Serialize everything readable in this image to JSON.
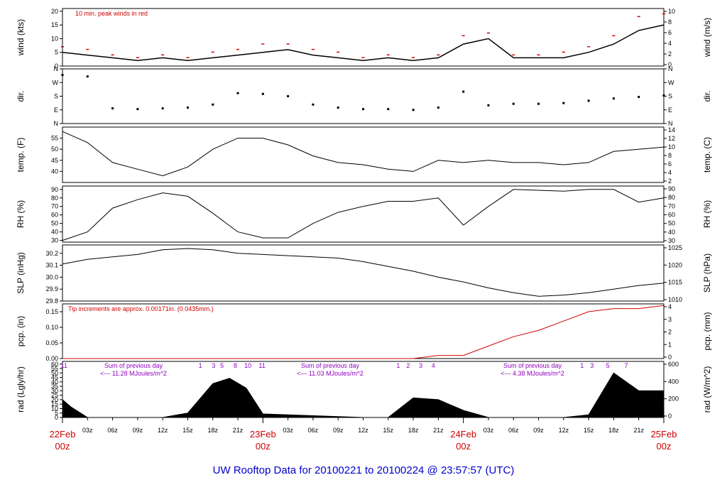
{
  "title": "UW Rooftop Data for 20100221  to  20100224 @ 23:57:57  (UTC)",
  "colors": {
    "red": "#d00000",
    "purple": "#9000c0",
    "blue": "#0000d0"
  },
  "chart_data": [
    {
      "id": "wind",
      "type": "line",
      "ylabel": "wind (kts)",
      "ylabel_right": "wind (m/s)",
      "ylim": [
        0,
        21
      ],
      "yticks": [
        0,
        5,
        10,
        15,
        20
      ],
      "yticks_right": [
        0,
        2,
        4,
        6,
        8,
        10
      ],
      "annotation": "10 min. peak winds in red",
      "series": [
        {
          "color": "#000000",
          "x": [
            0,
            3,
            6,
            9,
            12,
            15,
            18,
            21,
            24,
            27,
            30,
            33,
            36,
            39,
            42,
            45,
            48,
            51,
            54,
            57,
            60,
            63,
            66,
            69,
            72
          ],
          "y": [
            5,
            4,
            3,
            2,
            3,
            2,
            3,
            4,
            5,
            6,
            4,
            3,
            2,
            3,
            2,
            3,
            8,
            10,
            3,
            3,
            3,
            5,
            8,
            13,
            15
          ]
        },
        {
          "color": "#d00000",
          "x": [
            0,
            3,
            6,
            9,
            12,
            15,
            18,
            21,
            24,
            27,
            30,
            33,
            36,
            39,
            42,
            45,
            48,
            51,
            54,
            57,
            60,
            63,
            66,
            69,
            72
          ],
          "y": [
            7,
            6,
            4,
            3,
            4,
            3,
            5,
            6,
            8,
            8,
            6,
            5,
            3,
            4,
            3,
            4,
            11,
            12,
            4,
            4,
            5,
            7,
            11,
            18,
            19
          ]
        }
      ]
    },
    {
      "id": "dir",
      "type": "scatter",
      "ylabel": "dir.",
      "ylabel_right": "dir.",
      "ylim": [
        0,
        360
      ],
      "ytick_labels": [
        "N",
        "E",
        "S",
        "W",
        "N"
      ],
      "x": [
        0,
        3,
        6,
        9,
        12,
        15,
        18,
        21,
        24,
        27,
        30,
        33,
        36,
        39,
        42,
        45,
        48,
        51,
        54,
        57,
        60,
        63,
        66,
        69,
        72
      ],
      "y": [
        320,
        310,
        100,
        95,
        100,
        105,
        125,
        200,
        195,
        180,
        125,
        105,
        95,
        95,
        90,
        105,
        210,
        120,
        130,
        130,
        135,
        150,
        165,
        175,
        185
      ]
    },
    {
      "id": "temp",
      "type": "line",
      "ylabel": "temp. (F)",
      "ylabel_right": "temp. (C)",
      "ylim": [
        35,
        60
      ],
      "yticks": [
        40,
        45,
        50,
        55
      ],
      "yticks_right": [
        2,
        4,
        6,
        8,
        10,
        12,
        14
      ],
      "x": [
        0,
        3,
        6,
        9,
        12,
        15,
        18,
        21,
        24,
        27,
        30,
        33,
        36,
        39,
        42,
        45,
        48,
        51,
        54,
        57,
        60,
        63,
        66,
        69,
        72
      ],
      "y": [
        58,
        53,
        44,
        41,
        38,
        42,
        50,
        55,
        55,
        52,
        47,
        44,
        43,
        41,
        40,
        45,
        44,
        45,
        44,
        44,
        43,
        44,
        49,
        50,
        51
      ]
    },
    {
      "id": "rh",
      "type": "line",
      "ylabel": "RH (%)",
      "ylabel_right": "RH (%)",
      "ylim": [
        28,
        94
      ],
      "yticks": [
        30,
        40,
        50,
        60,
        70,
        80,
        90
      ],
      "yticks_right": [
        30,
        40,
        50,
        60,
        70,
        80,
        90
      ],
      "x": [
        0,
        3,
        6,
        9,
        12,
        15,
        18,
        21,
        24,
        27,
        30,
        33,
        36,
        39,
        42,
        45,
        48,
        51,
        54,
        57,
        60,
        63,
        66,
        69,
        72
      ],
      "y": [
        30,
        40,
        68,
        78,
        86,
        82,
        62,
        40,
        33,
        33,
        50,
        63,
        70,
        76,
        76,
        80,
        48,
        70,
        90,
        89,
        88,
        90,
        90,
        75,
        80
      ]
    },
    {
      "id": "slp",
      "type": "line",
      "ylabel": "SLP (inHg)",
      "ylabel_right": "SLP (hPa)",
      "ylim": [
        29.8,
        30.27
      ],
      "yticks": [
        29.8,
        29.9,
        30.0,
        30.1,
        30.2
      ],
      "yticks_right": [
        1010,
        1015,
        1020,
        1025
      ],
      "x": [
        0,
        3,
        6,
        9,
        12,
        15,
        18,
        21,
        24,
        27,
        30,
        33,
        36,
        39,
        42,
        45,
        48,
        51,
        54,
        57,
        60,
        63,
        66,
        69,
        72
      ],
      "y": [
        30.11,
        30.15,
        30.17,
        30.19,
        30.23,
        30.24,
        30.23,
        30.2,
        30.19,
        30.18,
        30.17,
        30.16,
        30.13,
        30.09,
        30.05,
        30.0,
        29.96,
        29.91,
        29.87,
        29.84,
        29.85,
        29.87,
        29.9,
        29.93,
        29.95
      ]
    },
    {
      "id": "pcp",
      "type": "line",
      "ylabel": "pcp. (in)",
      "ylabel_right": "pcp. (mm)",
      "ylim": [
        0,
        0.175
      ],
      "yticks": [
        0.0,
        0.05,
        0.1,
        0.15
      ],
      "ytick_labels": [
        "0.00",
        "0.05",
        "0.10",
        "0.15"
      ],
      "yticks_right": [
        0,
        1,
        2,
        3,
        4
      ],
      "annotation": "Tip increments are approx. 0.00171in. (0.0435mm.)",
      "x": [
        0,
        42,
        45,
        48,
        51,
        54,
        57,
        60,
        63,
        66,
        69,
        72
      ],
      "y": [
        0,
        0,
        0.01,
        0.01,
        0.04,
        0.07,
        0.09,
        0.12,
        0.15,
        0.16,
        0.16,
        0.17
      ]
    },
    {
      "id": "rad",
      "type": "area",
      "ylabel": "rad (Lgly/hr)",
      "ylabel_right": "rad (W/m^2)",
      "ylim": [
        0,
        63
      ],
      "yticks": [
        0,
        5,
        10,
        15,
        20,
        25,
        30,
        35,
        40,
        45,
        50,
        55,
        60
      ],
      "yticks_right": [
        0,
        200,
        400,
        600
      ],
      "x": [
        0,
        1,
        3,
        12,
        15,
        18,
        20,
        22,
        24,
        36,
        39,
        42,
        45,
        48,
        51,
        60,
        63,
        66,
        69,
        72
      ],
      "y": [
        20,
        12,
        0,
        0,
        5,
        38,
        44,
        33,
        4,
        0,
        0,
        22,
        20,
        8,
        0,
        0,
        3,
        50,
        30,
        30
      ],
      "sum_labels": [
        {
          "line1": "Sum of previous day",
          "line2": "<--- 11.28 MJoules/m^2"
        },
        {
          "line1": "Sum of previous day",
          "line2": "<--- 11.03 MJoules/m^2"
        },
        {
          "line1": "Sum of previous day",
          "line2": "<--- 4.38 MJoules/m^2"
        }
      ],
      "marker_labels": [
        "11",
        "1",
        "3",
        "5",
        "8",
        "10",
        "11",
        "1",
        "2",
        "3",
        "4",
        "1",
        "3",
        "5",
        "7"
      ],
      "marker_x": [
        0.2,
        16.5,
        18.1,
        19.1,
        20.7,
        22.2,
        23.9,
        40.2,
        41.4,
        42.9,
        44.4,
        62.2,
        63.4,
        65.3,
        67.5
      ]
    }
  ],
  "x_axis": {
    "hours_total": 72,
    "hour_ticks": [
      "03z",
      "06z",
      "09z",
      "12z",
      "15z",
      "18z",
      "21z",
      "03z",
      "06z",
      "09z",
      "12z",
      "15z",
      "18z",
      "21z",
      "03z",
      "06z",
      "09z",
      "12z",
      "15z",
      "18z",
      "21z"
    ],
    "hour_values": [
      3,
      6,
      9,
      12,
      15,
      18,
      21,
      27,
      30,
      33,
      36,
      39,
      42,
      45,
      51,
      54,
      57,
      60,
      63,
      66,
      69
    ],
    "day_labels": [
      {
        "day": "22Feb",
        "z": "00z",
        "x": 0
      },
      {
        "day": "23Feb",
        "z": "00z",
        "x": 24
      },
      {
        "day": "24Feb",
        "z": "00z",
        "x": 48
      },
      {
        "day": "25Feb",
        "z": "00z",
        "x": 72
      }
    ]
  }
}
